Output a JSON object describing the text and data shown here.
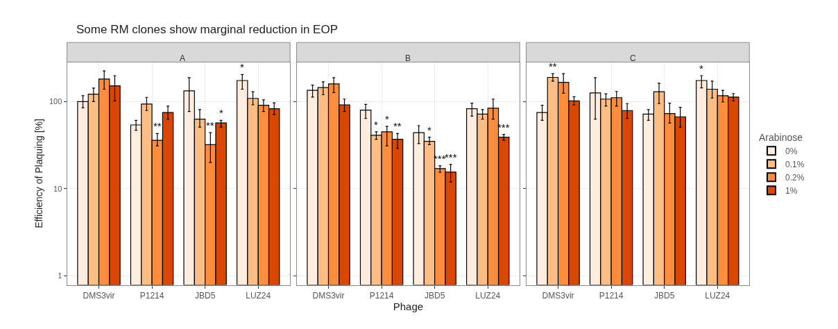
{
  "chart_data": [
    {
      "type": "bar",
      "title": "Some RM clones show marginal reduction in EOP",
      "subtitle": "A",
      "ylabel": "Efficiency of Plaquing [%]",
      "categories": [
        "DMS3vir",
        "P1214",
        "JBD5",
        "LUZ24"
      ],
      "log": "y",
      "ylim": [
        0.78,
        285
      ],
      "yticks": [
        1,
        10,
        100
      ],
      "grid": true,
      "legend": false,
      "series": [
        {
          "color": "#feedde",
          "values": [
            100,
            54,
            133,
            175
          ],
          "errors": [
            [
              85,
              117
            ],
            [
              47,
              61
            ],
            [
              77,
              189
            ],
            [
              139,
              205
            ]
          ],
          "value_labels": [
            null,
            null,
            null,
            "*"
          ]
        },
        {
          "color": "#fdbe85",
          "values": [
            122,
            94,
            63,
            109
          ],
          "errors": [
            [
              100,
              143
            ],
            [
              79,
              112
            ],
            [
              51,
              81
            ],
            [
              92,
              130
            ]
          ],
          "value_labels": [
            null,
            null,
            null,
            null
          ]
        },
        {
          "color": "#fd8d3c",
          "values": [
            182,
            36,
            32,
            91
          ],
          "errors": [
            [
              139,
              226
            ],
            [
              31,
              43
            ],
            [
              20,
              44
            ],
            [
              77,
              105
            ]
          ],
          "value_labels": [
            null,
            "**",
            "**",
            null
          ]
        },
        {
          "color": "#d94701",
          "values": [
            152,
            75,
            57,
            83
          ],
          "errors": [
            [
              102,
              199
            ],
            [
              63,
              89
            ],
            [
              51,
              61
            ],
            [
              71,
              97
            ]
          ],
          "value_labels": [
            null,
            null,
            "*",
            null
          ]
        }
      ]
    },
    {
      "type": "bar",
      "subtitle": "B",
      "xlabel": "Phage",
      "categories": [
        "DMS3vir",
        "P1214",
        "JBD5",
        "LUZ24"
      ],
      "log": "y",
      "ylim": [
        0.78,
        285
      ],
      "yticks": [
        1,
        10,
        100
      ],
      "grid": true,
      "legend": false,
      "tick_labels": "x",
      "series": [
        {
          "color": "#feedde",
          "values": [
            135,
            80,
            44,
            83
          ],
          "errors": [
            [
              113,
              155
            ],
            [
              64,
              93
            ],
            [
              33,
              53
            ],
            [
              68,
              96
            ]
          ],
          "value_labels": [
            null,
            null,
            null,
            null
          ]
        },
        {
          "color": "#fdbe85",
          "values": [
            145,
            41,
            35,
            72
          ],
          "errors": [
            [
              120,
              169
            ],
            [
              37,
              45
            ],
            [
              32,
              39
            ],
            [
              63,
              81
            ]
          ],
          "value_labels": [
            null,
            "*",
            "*",
            null
          ]
        },
        {
          "color": "#fd8d3c",
          "values": [
            160,
            45,
            17,
            84
          ],
          "errors": [
            [
              127,
              189
            ],
            [
              31,
              52
            ],
            [
              15.4,
              18.3
            ],
            [
              63,
              107
            ]
          ],
          "value_labels": [
            null,
            "*",
            "***",
            null
          ]
        },
        {
          "color": "#d94701",
          "values": [
            92,
            37,
            15.5,
            39
          ],
          "errors": [
            [
              77,
              107
            ],
            [
              29,
              43
            ],
            [
              11.9,
              19
            ],
            [
              36,
              42
            ]
          ],
          "value_labels": [
            null,
            "**",
            "***",
            "***"
          ]
        }
      ]
    },
    {
      "type": "bar",
      "subtitle": "C",
      "legend_title": "Arabinose",
      "categories": [
        "DMS3vir",
        "P1214",
        "JBD5",
        "LUZ24"
      ],
      "log": "y",
      "ylim": [
        0.78,
        285
      ],
      "yticks": [
        1,
        10,
        100
      ],
      "grid": true,
      "legend": "right",
      "tick_labels": "x",
      "series": [
        {
          "name": "0%",
          "color": "#feedde",
          "values": [
            75,
            126,
            72,
            175
          ],
          "errors": [
            [
              61,
              91
            ],
            [
              63,
              189
            ],
            [
              61,
              81
            ],
            [
              144,
              199
            ]
          ],
          "value_labels": [
            null,
            null,
            null,
            "*"
          ]
        },
        {
          "name": "0.1%",
          "color": "#fdbe85",
          "values": [
            190,
            107,
            130,
            139
          ],
          "errors": [
            [
              172,
              210
            ],
            [
              89,
              123
            ],
            [
              95,
              163
            ],
            [
              110,
              172
            ]
          ],
          "value_labels": [
            "**",
            null,
            null,
            null
          ]
        },
        {
          "name": "0.2%",
          "color": "#fd8d3c",
          "values": [
            167,
            111,
            73,
            117
          ],
          "errors": [
            [
              125,
              210
            ],
            [
              89,
              131
            ],
            [
              57,
              96
            ],
            [
              99,
              135
            ]
          ],
          "value_labels": [
            null,
            null,
            null,
            null
          ]
        },
        {
          "name": "1%",
          "color": "#d94701",
          "values": [
            102,
            79,
            67,
            113
          ],
          "errors": [
            [
              92,
              114
            ],
            [
              64,
              95
            ],
            [
              51,
              86
            ],
            [
              102,
              124
            ]
          ],
          "value_labels": [
            null,
            null,
            null,
            null
          ]
        }
      ]
    }
  ]
}
